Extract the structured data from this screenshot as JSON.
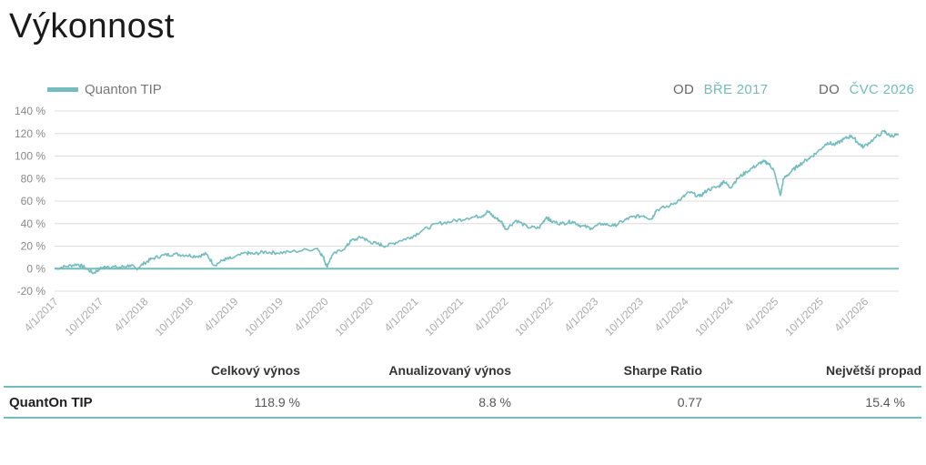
{
  "header": {
    "title": "Výkonnost"
  },
  "legend": {
    "label": "Quanton TIP"
  },
  "range": {
    "from_label": "OD",
    "from_value": "BŘE 2017",
    "to_label": "DO",
    "to_value": "ČVC 2026"
  },
  "colors": {
    "accent": "#74bcbe",
    "grid": "#dcdcdc",
    "zero_line": "#74bcbe",
    "axis_text": "#888888"
  },
  "chart_data": {
    "type": "line",
    "title": "",
    "xlabel": "",
    "ylabel": "",
    "ylim": [
      -20,
      140
    ],
    "y_ticks": [
      -20,
      0,
      20,
      40,
      60,
      80,
      100,
      120,
      140
    ],
    "y_tick_labels": [
      "-20 %",
      "0 %",
      "20 %",
      "40 %",
      "60 %",
      "80 %",
      "100 %",
      "120 %",
      "140 %"
    ],
    "x_range": [
      "2017-03-15",
      "2026-07-31"
    ],
    "x_ticks": [
      "2017-04-01",
      "2017-10-01",
      "2018-04-01",
      "2018-10-01",
      "2019-04-01",
      "2019-10-01",
      "2020-04-01",
      "2020-10-01",
      "2021-04-01",
      "2021-10-01",
      "2022-04-01",
      "2022-10-01",
      "2023-04-01",
      "2023-10-01",
      "2024-04-01",
      "2024-10-01",
      "2025-04-01",
      "2025-10-01",
      "2026-04-01"
    ],
    "x_tick_labels": [
      "4/1/2017",
      "10/1/2017",
      "4/1/2018",
      "10/1/2018",
      "4/1/2019",
      "10/1/2019",
      "4/1/2020",
      "10/1/2020",
      "4/1/2021",
      "10/1/2021",
      "4/1/2022",
      "10/1/2022",
      "4/1/2023",
      "10/1/2023",
      "4/1/2024",
      "10/1/2024",
      "4/1/2025",
      "10/1/2025",
      "4/1/2026"
    ],
    "grid": true,
    "legend_position": "top-left",
    "series": [
      {
        "name": "Quanton TIP",
        "points": [
          [
            "2017-03-15",
            0
          ],
          [
            "2017-05-01",
            2
          ],
          [
            "2017-06-15",
            4
          ],
          [
            "2017-07-15",
            1
          ],
          [
            "2017-08-20",
            -4
          ],
          [
            "2017-09-15",
            0
          ],
          [
            "2017-10-15",
            2
          ],
          [
            "2017-12-01",
            1
          ],
          [
            "2018-01-15",
            3
          ],
          [
            "2018-02-10",
            0
          ],
          [
            "2018-03-15",
            5
          ],
          [
            "2018-04-15",
            9
          ],
          [
            "2018-06-01",
            12
          ],
          [
            "2018-07-15",
            13
          ],
          [
            "2018-09-01",
            12
          ],
          [
            "2018-10-15",
            11
          ],
          [
            "2018-11-20",
            13
          ],
          [
            "2018-12-24",
            3
          ],
          [
            "2019-01-31",
            8
          ],
          [
            "2019-03-01",
            9
          ],
          [
            "2019-05-01",
            14
          ],
          [
            "2019-06-01",
            13
          ],
          [
            "2019-07-15",
            15
          ],
          [
            "2019-09-01",
            14
          ],
          [
            "2019-11-01",
            15
          ],
          [
            "2020-02-15",
            18
          ],
          [
            "2020-03-10",
            10
          ],
          [
            "2020-03-23",
            2
          ],
          [
            "2020-04-15",
            12
          ],
          [
            "2020-06-08",
            19
          ],
          [
            "2020-07-01",
            25
          ],
          [
            "2020-08-15",
            28
          ],
          [
            "2020-09-10",
            24
          ],
          [
            "2020-10-15",
            22
          ],
          [
            "2020-11-20",
            20
          ],
          [
            "2021-01-15",
            25
          ],
          [
            "2021-03-01",
            28
          ],
          [
            "2021-04-15",
            34
          ],
          [
            "2021-06-15",
            40
          ],
          [
            "2021-08-15",
            42
          ],
          [
            "2021-10-15",
            45
          ],
          [
            "2021-12-15",
            47
          ],
          [
            "2022-01-05",
            51
          ],
          [
            "2022-01-30",
            46
          ],
          [
            "2022-03-01",
            42
          ],
          [
            "2022-03-20",
            35
          ],
          [
            "2022-05-01",
            43
          ],
          [
            "2022-06-15",
            37
          ],
          [
            "2022-08-01",
            36
          ],
          [
            "2022-09-01",
            46
          ],
          [
            "2022-09-20",
            42
          ],
          [
            "2022-11-01",
            40
          ],
          [
            "2022-12-15",
            42
          ],
          [
            "2023-01-20",
            38
          ],
          [
            "2023-03-01",
            36
          ],
          [
            "2023-04-15",
            40
          ],
          [
            "2023-06-01",
            38
          ],
          [
            "2023-07-15",
            43
          ],
          [
            "2023-08-15",
            46
          ],
          [
            "2023-10-01",
            47
          ],
          [
            "2023-11-01",
            44
          ],
          [
            "2023-11-20",
            52
          ],
          [
            "2024-01-15",
            56
          ],
          [
            "2024-03-01",
            62
          ],
          [
            "2024-04-01",
            68
          ],
          [
            "2024-05-15",
            64
          ],
          [
            "2024-06-15",
            70
          ],
          [
            "2024-08-01",
            73
          ],
          [
            "2024-08-20",
            78
          ],
          [
            "2024-09-15",
            72
          ],
          [
            "2024-10-15",
            80
          ],
          [
            "2024-11-20",
            86
          ],
          [
            "2025-01-01",
            92
          ],
          [
            "2025-01-25",
            95
          ],
          [
            "2025-02-15",
            94
          ],
          [
            "2025-03-10",
            88
          ],
          [
            "2025-04-07",
            65
          ],
          [
            "2025-04-20",
            80
          ],
          [
            "2025-05-20",
            86
          ],
          [
            "2025-06-20",
            92
          ],
          [
            "2025-08-01",
            98
          ],
          [
            "2025-09-01",
            103
          ],
          [
            "2025-10-15",
            112
          ],
          [
            "2025-11-15",
            110
          ],
          [
            "2025-12-20",
            115
          ],
          [
            "2026-01-20",
            118
          ],
          [
            "2026-02-15",
            112
          ],
          [
            "2026-03-10",
            108
          ],
          [
            "2026-04-20",
            115
          ],
          [
            "2026-06-01",
            122
          ],
          [
            "2026-06-25",
            118
          ],
          [
            "2026-07-31",
            118.9
          ]
        ]
      }
    ]
  },
  "stats": {
    "headers": [
      "",
      "Celkový výnos",
      "Anualizovaný výnos",
      "Sharpe Ratio",
      "Největší propad"
    ],
    "rows": [
      {
        "name": "QuantOn TIP",
        "total_return": "118.9 %",
        "annualized_return": "8.8 %",
        "sharpe": "0.77",
        "max_drawdown": "15.4 %"
      }
    ]
  }
}
